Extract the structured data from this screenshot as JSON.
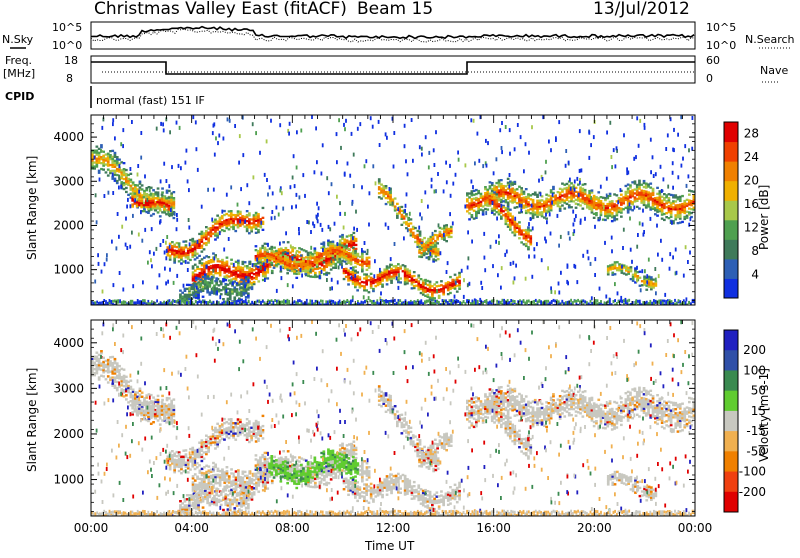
{
  "header": {
    "title": "Christmas Valley East (fitACF)",
    "beam": "Beam 15",
    "date": "13/Jul/2012"
  },
  "top_panels": {
    "nsky_label": "N.Sky",
    "nsearch_label": "N.Search",
    "nsky_ticks": [
      "10^5",
      "10^0"
    ],
    "nsearch_ticks": [
      "10^5",
      "10^0"
    ],
    "freq_label": "Freq.",
    "freq_unit": "[MHz]",
    "freq_ticks": [
      "18",
      "8"
    ],
    "nave_label": "Nave",
    "nave_ticks": [
      "60",
      "0"
    ],
    "cpid_label": "CPID",
    "cpid_text": "normal (fast) 151 IF"
  },
  "colors": {
    "power": [
      "#1030e0",
      "#2d5fb5",
      "#3f7a5a",
      "#4fa050",
      "#a8c84a",
      "#f0b000",
      "#f08000",
      "#f04000",
      "#e00000"
    ],
    "velocity": [
      "#2020c0",
      "#3050a8",
      "#3a8a50",
      "#60cc30",
      "#c8c8c0",
      "#f0b050",
      "#f08000",
      "#f04010",
      "#e00000"
    ]
  },
  "chart_data": [
    {
      "type": "heatmap",
      "ylabel": "Slant Range [km]",
      "yticks": [
        "1000",
        "2000",
        "3000",
        "4000"
      ],
      "ylim": [
        200,
        4500
      ],
      "xlim": [
        0,
        24
      ],
      "colorbar_label": "Power [dB]",
      "colorbar_ticks": [
        "4",
        "8",
        "12",
        "16",
        "20",
        "24",
        "28"
      ],
      "colorbar_range": [
        0,
        30
      ]
    },
    {
      "type": "heatmap",
      "ylabel": "Slant Range [km]",
      "yticks": [
        "1000",
        "2000",
        "3000",
        "4000"
      ],
      "ylim": [
        200,
        4500
      ],
      "xlim": [
        0,
        24
      ],
      "xlabel": "Time UT",
      "xticks": [
        "00:00",
        "04:00",
        "08:00",
        "12:00",
        "16:00",
        "20:00",
        "00:00"
      ],
      "colorbar_label": "Velocity [m s-1]",
      "colorbar_ticks": [
        "200",
        "100",
        "50",
        "15",
        "-15",
        "-50",
        "-100",
        "-200"
      ]
    }
  ]
}
